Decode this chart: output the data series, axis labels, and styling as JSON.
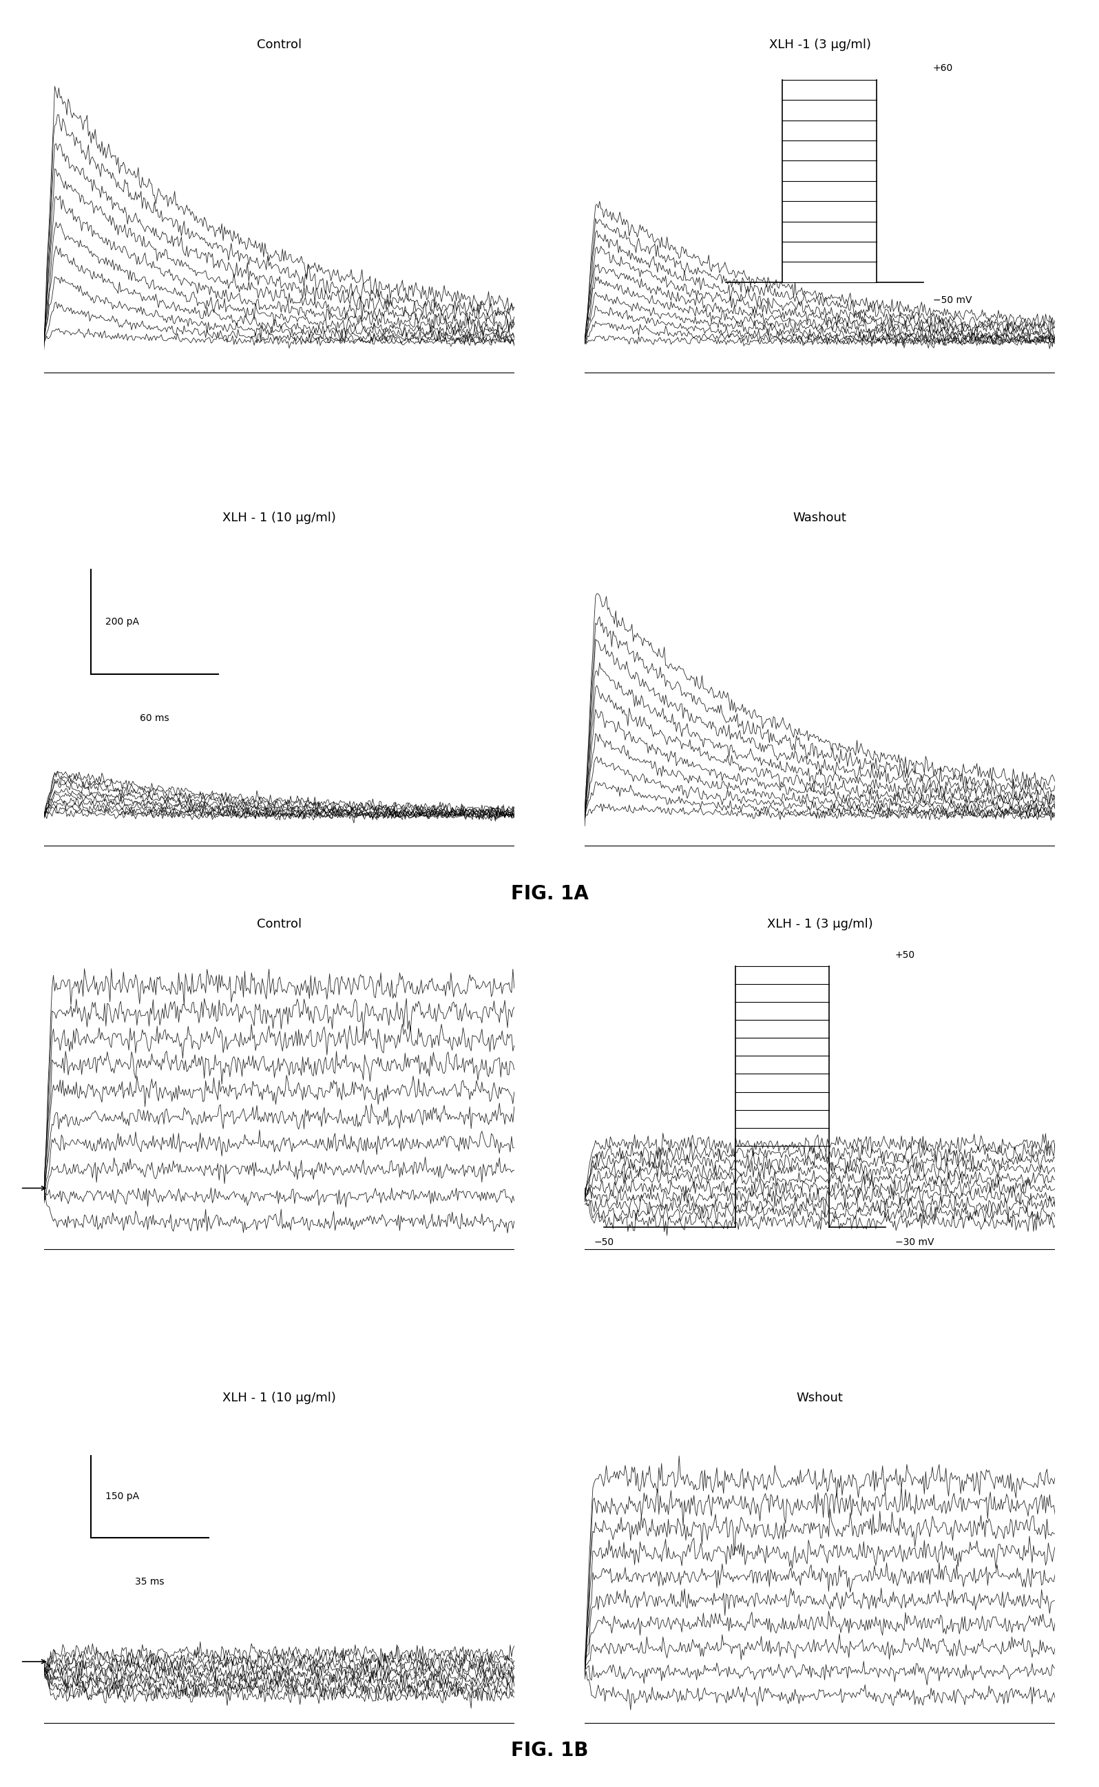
{
  "fig1a_title": "FIG. 1A",
  "fig1b_title": "FIG. 1B",
  "panel1a_labels": [
    "Control",
    "XLH -1 (3 μg/ml)",
    "XLH - 1 (10 μg/ml)",
    "Washout"
  ],
  "panel1b_labels": [
    "Control",
    "XLH - 1 (3 μg/ml)",
    "XLH - 1 (10 μg/ml)",
    "Wshout"
  ],
  "scale1a": {
    "current": "200 pA",
    "time": "60 ms"
  },
  "scale1b": {
    "current": "150 pA",
    "time": "35 ms"
  },
  "voltage1a": {
    "top": "+60",
    "bottom": "−50 mV"
  },
  "voltage1b": {
    "top": "+50",
    "bottom": "−30 mV",
    "holding": "−50"
  },
  "n_traces_1a": 10,
  "n_traces_1b": 10,
  "bg_color": "#ffffff",
  "trace_color": "#000000"
}
